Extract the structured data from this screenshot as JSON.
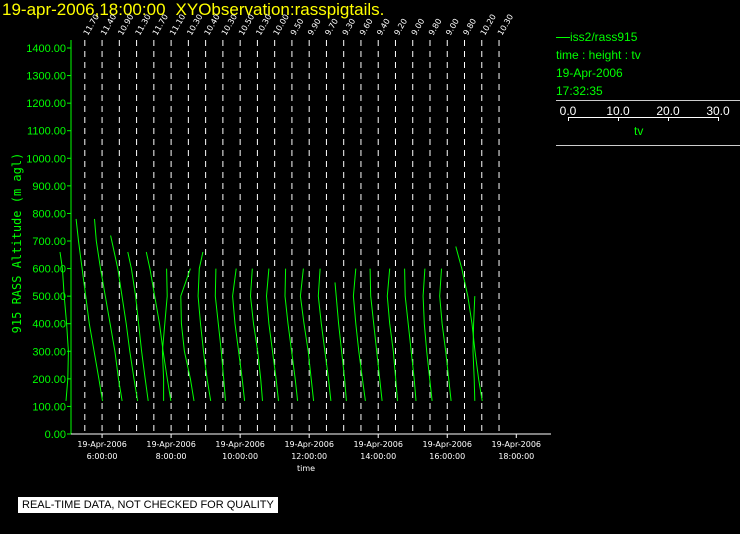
{
  "header": {
    "datetime": "19-apr-2006,18:00:00",
    "title": "XYObservation:rasspigtails."
  },
  "legend": {
    "series": "iss2/rass915",
    "vars": "time : height : tv",
    "date": "19-Apr-2006",
    "time": "17:32:35",
    "scale_ticks": [
      "0.0",
      "10.0",
      "20.0",
      "30.0"
    ],
    "scale_name": "tv"
  },
  "footer": {
    "quality_note": "REAL-TIME DATA, NOT CHECKED FOR QUALITY"
  },
  "colors": {
    "background": "#000000",
    "title": "#ffff00",
    "data": "#00ff00",
    "axis": "#ffffff"
  },
  "chart_data": {
    "type": "line",
    "title": "",
    "xlabel": "time",
    "ylabel": "915 RASS Altitude (m agl)",
    "ylim": [
      0,
      1400
    ],
    "yticks": [
      "0.00",
      "100.00",
      "200.00",
      "300.00",
      "400.00",
      "500.00",
      "600.00",
      "700.00",
      "800.00",
      "900.00",
      "1000.00",
      "1100.00",
      "1200.00",
      "1300.00",
      "1400.00"
    ],
    "xlim_hours": [
      5.1,
      18.6
    ],
    "xticks": [
      {
        "hour": 6,
        "date": "19-Apr-2006",
        "time": "6:00:00"
      },
      {
        "hour": 8,
        "date": "19-Apr-2006",
        "time": "8:00:00"
      },
      {
        "hour": 10,
        "date": "19-Apr-2006",
        "time": "10:00:00"
      },
      {
        "hour": 12,
        "date": "19-Apr-2006",
        "time": "12:00:00"
      },
      {
        "hour": 14,
        "date": "19-Apr-2006",
        "time": "14:00:00"
      },
      {
        "hour": 16,
        "date": "19-Apr-2006",
        "time": "16:00:00"
      },
      {
        "hour": 18,
        "date": "19-Apr-2006",
        "time": "18:00:00"
      }
    ],
    "grid": "dashed vertical lines at profile times",
    "tv_scale": [
      0,
      30
    ],
    "profiles": [
      {
        "hour": 5.5,
        "label": "11.70",
        "heights": [
          120,
          200,
          300,
          400,
          500,
          600,
          660
        ],
        "tv": [
          1.2,
          1.5,
          1.6,
          1.3,
          0.9,
          0.6,
          0.2
        ]
      },
      {
        "hour": 6.0,
        "label": "11.40",
        "heights": [
          120,
          200,
          300,
          400,
          500,
          600,
          700,
          780
        ],
        "tv": [
          4.4,
          3.8,
          3.0,
          2.2,
          1.6,
          1.0,
          0.4,
          0.0
        ]
      },
      {
        "hour": 6.5,
        "label": "10.90",
        "heights": [
          120,
          200,
          300,
          400,
          500,
          600,
          700,
          780
        ],
        "tv": [
          4.8,
          4.2,
          3.6,
          2.8,
          2.0,
          1.2,
          0.5,
          0.2
        ]
      },
      {
        "hour": 7.0,
        "label": "11.30",
        "heights": [
          120,
          200,
          300,
          400,
          500,
          600,
          720
        ],
        "tv": [
          4.5,
          3.9,
          3.2,
          2.6,
          1.9,
          1.2,
          0.0
        ]
      },
      {
        "hour": 7.5,
        "label": "11.70",
        "heights": [
          120,
          200,
          300,
          400,
          500,
          600,
          660
        ],
        "tv": [
          3.4,
          2.9,
          2.3,
          1.8,
          1.3,
          0.6,
          0.0
        ]
      },
      {
        "hour": 8.0,
        "label": "11.10",
        "heights": [
          120,
          200,
          300,
          400,
          500,
          600,
          660
        ],
        "tv": [
          4.3,
          3.7,
          3.0,
          2.4,
          1.6,
          0.8,
          0.2
        ]
      },
      {
        "hour": 8.5,
        "label": "10.30",
        "heights": [
          120,
          200,
          300,
          400,
          500,
          600
        ],
        "tv": [
          0.2,
          0.2,
          0.0,
          0.4,
          0.8,
          0.7
        ]
      },
      {
        "hour": 9.0,
        "label": "10.40",
        "heights": [
          120,
          200,
          300,
          400,
          500,
          600
        ],
        "tv": [
          2.4,
          1.8,
          0.8,
          0.3,
          0.2,
          1.8
        ]
      },
      {
        "hour": 9.5,
        "label": "10.30",
        "heights": [
          120,
          200,
          300,
          400,
          500,
          600,
          660
        ],
        "tv": [
          2.3,
          1.7,
          1.1,
          0.6,
          0.2,
          0.4,
          1.0
        ]
      },
      {
        "hour": 10.0,
        "label": "10.50",
        "heights": [
          120,
          200,
          300,
          400,
          500,
          600
        ],
        "tv": [
          1.9,
          1.6,
          1.2,
          0.7,
          0.2,
          0.3
        ]
      },
      {
        "hour": 10.5,
        "label": "10.30",
        "heights": [
          120,
          200,
          300,
          400,
          500,
          600
        ],
        "tv": [
          2.2,
          1.8,
          1.2,
          0.6,
          0.2,
          0.8
        ]
      },
      {
        "hour": 11.0,
        "label": "10.00",
        "heights": [
          120,
          200,
          300,
          400,
          500,
          600
        ],
        "tv": [
          2.3,
          2.0,
          1.5,
          0.8,
          0.3,
          0.6
        ]
      },
      {
        "hour": 11.5,
        "label": "9.50",
        "heights": [
          120,
          200,
          300,
          400,
          500,
          600
        ],
        "tv": [
          2.1,
          1.7,
          1.1,
          0.5,
          0.1,
          0.5
        ]
      },
      {
        "hour": 12.0,
        "label": "9.90",
        "heights": [
          120,
          200,
          300,
          400,
          500,
          600
        ],
        "tv": [
          2.4,
          2.0,
          1.4,
          0.8,
          0.3,
          0.4
        ]
      },
      {
        "hour": 12.5,
        "label": "9.70",
        "heights": [
          120,
          200,
          300,
          400,
          500,
          600
        ],
        "tv": [
          2.2,
          1.8,
          1.3,
          0.6,
          0.0,
          0.5
        ]
      },
      {
        "hour": 13.0,
        "label": "9.30",
        "heights": [
          120,
          200,
          300,
          400,
          500,
          600
        ],
        "tv": [
          2.2,
          1.8,
          1.2,
          0.6,
          0.1,
          0.4
        ]
      },
      {
        "hour": 13.5,
        "label": "9.60",
        "heights": [
          120,
          200,
          300,
          400,
          500,
          550
        ],
        "tv": [
          1.9,
          1.6,
          1.1,
          0.6,
          0.2,
          0.0
        ]
      },
      {
        "hour": 14.0,
        "label": "9.40",
        "heights": [
          120,
          200,
          300,
          400,
          500,
          600
        ],
        "tv": [
          2.2,
          1.7,
          1.1,
          0.6,
          0.2,
          0.6
        ]
      },
      {
        "hour": 14.5,
        "label": "9.20",
        "heights": [
          120,
          200,
          300,
          400,
          500,
          600
        ],
        "tv": [
          2.1,
          1.7,
          1.2,
          0.7,
          0.2,
          0.1
        ]
      },
      {
        "hour": 15.0,
        "label": "9.00",
        "heights": [
          120,
          200,
          300,
          400,
          500,
          600
        ],
        "tv": [
          1.8,
          1.5,
          1.1,
          0.5,
          0.1,
          0.5
        ]
      },
      {
        "hour": 15.5,
        "label": "9.80",
        "heights": [
          120,
          200,
          300,
          400,
          500,
          600
        ],
        "tv": [
          2.0,
          1.7,
          1.2,
          0.7,
          0.2,
          0.1
        ]
      },
      {
        "hour": 16.0,
        "label": "9.00",
        "heights": [
          120,
          200,
          300,
          400,
          500,
          600
        ],
        "tv": [
          1.8,
          1.4,
          0.9,
          0.5,
          0.3,
          0.6
        ]
      },
      {
        "hour": 16.5,
        "label": "9.80",
        "heights": [
          120,
          200,
          300,
          400,
          500,
          600
        ],
        "tv": [
          2.1,
          1.7,
          1.2,
          0.6,
          0.2,
          0.5
        ]
      },
      {
        "hour": 17.0,
        "label": "10.20",
        "heights": [
          120,
          200,
          300,
          400,
          500,
          600,
          680
        ],
        "tv": [
          4.4,
          3.8,
          3.2,
          2.7,
          2.0,
          1.0,
          0.0
        ]
      },
      {
        "hour": 17.5,
        "label": "10.30",
        "heights": [
          120,
          200,
          300,
          400,
          500
        ],
        "tv": [
          0.3,
          0.2,
          0.0,
          0.1,
          0.3
        ]
      }
    ]
  }
}
